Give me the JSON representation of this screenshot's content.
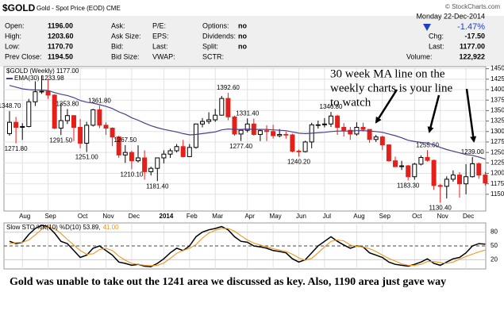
{
  "chart_data": {
    "type": "candlestick",
    "title": "$GOLD",
    "subtitle": "Gold - Spot Price (EOD) CME",
    "source": "© StockCharts.com",
    "quote": [
      [
        {
          "label": "Open:",
          "value": "1196.00"
        },
        {
          "label": "Ask:"
        },
        {
          "label": "P/E:"
        },
        {
          "label": "Options:",
          "value": "no"
        }
      ],
      [
        {
          "label": "High:",
          "value": "1203.60"
        },
        {
          "label": "Ask Size:"
        },
        {
          "label": "EPS:"
        },
        {
          "label": "Dividends:",
          "value": "no"
        }
      ],
      [
        {
          "label": "Low:",
          "value": "1170.70"
        },
        {
          "label": "Bid:"
        },
        {
          "label": "Last:"
        },
        {
          "label": "Split:",
          "value": "no"
        }
      ],
      [
        {
          "label": "Prev Close:",
          "value": "1194.50"
        },
        {
          "label": "Bid Size:"
        },
        {
          "label": "VWAP:"
        },
        {
          "label": "SCTR:"
        }
      ]
    ],
    "session": {
      "date": "Monday  22-Dec-2014",
      "change_pct": "-1.47%",
      "fields": [
        {
          "label": "Chg:",
          "value": "-17.50"
        },
        {
          "label": "Last:",
          "value": "1177.00"
        },
        {
          "label": "Volume:",
          "value": "122,922"
        }
      ]
    },
    "legend": "$GOLD (Weekly) 1177.00",
    "categories": [
      null,
      null,
      "Aug",
      null,
      null,
      null,
      "Sep",
      null,
      null,
      null,
      null,
      "Oct",
      null,
      null,
      null,
      "Nov",
      null,
      null,
      null,
      "Dec",
      null,
      null,
      null,
      null,
      "2014",
      null,
      null,
      null,
      "Feb",
      null,
      null,
      null,
      "Mar",
      null,
      null,
      null,
      null,
      "Apr",
      null,
      null,
      null,
      "May",
      null,
      null,
      null,
      "Jun",
      null,
      null,
      null,
      "Jul",
      null,
      null,
      null,
      null,
      "Aug",
      null,
      null,
      null,
      "Sep",
      null,
      null,
      null,
      null,
      "Oct",
      null,
      null,
      null,
      "Nov",
      null,
      null,
      null,
      "Dec",
      null,
      null,
      null
    ],
    "open": [
      1295,
      1322,
      1310,
      1312,
      1371,
      1395,
      1396,
      1387,
      1308,
      1326,
      1338,
      1310,
      1272,
      1315,
      1352,
      1315,
      1308,
      1287,
      1244,
      1250,
      1230,
      1237,
      1204,
      1212,
      1237,
      1246,
      1254,
      1264,
      1240,
      1262,
      1318,
      1324,
      1328,
      1339,
      1379,
      1335,
      1294,
      1303,
      1318,
      1293,
      1302,
      1300,
      1290,
      1293,
      1292,
      1253,
      1252,
      1275,
      1316,
      1316,
      1318,
      1337,
      1310,
      1303,
      1294,
      1310,
      1305,
      1281,
      1287,
      1268,
      1230,
      1216,
      1218,
      1192,
      1222,
      1238,
      1231,
      1171,
      1169,
      1186,
      1196,
      1175,
      1192,
      1223,
      1196
    ],
    "high": [
      1348.7,
      1335,
      1320,
      1378,
      1420,
      1434,
      1425,
      1389,
      1368,
      1353.8,
      1339,
      1330,
      1323,
      1354,
      1361.8,
      1322,
      1310,
      1290,
      1267.5,
      1254,
      1267,
      1255,
      1216,
      1238,
      1255,
      1259,
      1270,
      1280,
      1270,
      1319,
      1332,
      1346,
      1354,
      1385,
      1392.6,
      1338,
      1306,
      1331.4,
      1331,
      1305,
      1315,
      1316,
      1306,
      1300,
      1295,
      1257,
      1278,
      1321,
      1326,
      1332,
      1346.8,
      1340,
      1320,
      1311,
      1322,
      1321,
      1305,
      1292,
      1290,
      1269,
      1240,
      1230,
      1220,
      1225,
      1243,
      1255.6,
      1233,
      1175,
      1193,
      1207,
      1203,
      1222,
      1239,
      1226,
      1203.6
    ],
    "low": [
      1290,
      1271.8,
      1280,
      1310,
      1361,
      1390,
      1378,
      1306,
      1291.5,
      1318,
      1277,
      1260,
      1251,
      1312,
      1308,
      1292,
      1265,
      1237,
      1225,
      1210.1,
      1226,
      1185,
      1195,
      1181.4,
      1224,
      1237,
      1250,
      1238,
      1240,
      1259,
      1310,
      1318,
      1323,
      1338,
      1327,
      1290,
      1277.4,
      1298,
      1290,
      1277,
      1277,
      1283,
      1286,
      1283,
      1250,
      1240.2,
      1250,
      1260,
      1307,
      1310,
      1311,
      1292,
      1288,
      1280,
      1290,
      1300,
      1273,
      1275,
      1256,
      1228,
      1215,
      1208,
      1183.3,
      1185,
      1219,
      1228,
      1161,
      1130.4,
      1140,
      1180,
      1142,
      1150,
      1190,
      1187,
      1170.7
    ],
    "close": [
      1322,
      1310,
      1312,
      1371,
      1395,
      1396,
      1387,
      1308,
      1326,
      1338,
      1310,
      1272,
      1315,
      1352,
      1315,
      1308,
      1287,
      1244,
      1250,
      1230,
      1237,
      1204,
      1212,
      1237,
      1246,
      1254,
      1264,
      1240,
      1262,
      1318,
      1324,
      1328,
      1339,
      1379,
      1335,
      1294,
      1303,
      1318,
      1293,
      1302,
      1300,
      1290,
      1293,
      1292,
      1253,
      1252,
      1275,
      1316,
      1316,
      1318,
      1337,
      1310,
      1303,
      1294,
      1310,
      1305,
      1281,
      1287,
      1268,
      1230,
      1216,
      1218,
      1192,
      1222,
      1238,
      1231,
      1171,
      1169,
      1186,
      1196,
      1175,
      1192,
      1223,
      1196,
      1177
    ],
    "high_labels": [
      "1348.70",
      null,
      null,
      null,
      null,
      null,
      null,
      null,
      null,
      "1353.80",
      null,
      null,
      null,
      null,
      "1361.80",
      null,
      null,
      null,
      "1267.50",
      null,
      null,
      null,
      null,
      null,
      null,
      null,
      null,
      null,
      null,
      null,
      null,
      null,
      null,
      null,
      "1392.60",
      null,
      null,
      "1331.40",
      null,
      null,
      null,
      null,
      null,
      null,
      null,
      null,
      null,
      null,
      null,
      null,
      "1346.80",
      null,
      null,
      null,
      null,
      null,
      null,
      null,
      null,
      null,
      null,
      null,
      null,
      null,
      null,
      "1255.60",
      null,
      null,
      null,
      null,
      null,
      null,
      "1239.00",
      null,
      null
    ],
    "low_labels": [
      null,
      "1271.80",
      null,
      null,
      null,
      null,
      null,
      null,
      "1291.50",
      null,
      null,
      null,
      "1251.00",
      null,
      null,
      null,
      null,
      null,
      null,
      "1210.10",
      null,
      null,
      null,
      "1181.40",
      null,
      null,
      null,
      null,
      null,
      null,
      null,
      null,
      null,
      null,
      null,
      null,
      "1277.40",
      null,
      null,
      null,
      null,
      null,
      null,
      null,
      null,
      "1240.20",
      null,
      null,
      null,
      null,
      null,
      null,
      null,
      null,
      null,
      null,
      null,
      null,
      null,
      null,
      null,
      null,
      "1183.30",
      null,
      null,
      null,
      null,
      "1130.40",
      null,
      null,
      null,
      null,
      null,
      null,
      null
    ],
    "up_color": "#000000",
    "down_color": "#e3201b",
    "ylim": [
      1110,
      1455
    ],
    "yticks": [
      1150,
      1175,
      1200,
      1225,
      1250,
      1275,
      1300,
      1325,
      1350,
      1375,
      1400,
      1425,
      1450
    ],
    "grid": true,
    "ema": {
      "name": "EMA(30) 1233.98",
      "color": "#4a3f8c",
      "values": [
        1410,
        1406,
        1402,
        1400,
        1399,
        1399,
        1398,
        1393,
        1389,
        1386,
        1381,
        1374,
        1370,
        1368,
        1364,
        1360,
        1355,
        1347,
        1341,
        1333,
        1327,
        1320,
        1314,
        1309,
        1305,
        1302,
        1299,
        1295,
        1292,
        1293,
        1295,
        1297,
        1299,
        1304,
        1306,
        1305,
        1305,
        1306,
        1305,
        1305,
        1305,
        1304,
        1303,
        1302,
        1299,
        1296,
        1295,
        1296,
        1297,
        1298,
        1300,
        1301,
        1301,
        1301,
        1302,
        1302,
        1301,
        1300,
        1298,
        1294,
        1290,
        1285,
        1279,
        1276,
        1274,
        1272,
        1268,
        1262,
        1257,
        1253,
        1249,
        1245,
        1243,
        1239,
        1233.98
      ]
    },
    "annotation": [
      "30 week MA line on the",
      "weekly charts is your line",
      "to watch"
    ],
    "stochastic": {
      "type": "line",
      "label": "Slow STO %K(10) %D(10) 53.89,",
      "d_label": "41.00",
      "ylim": [
        0,
        100
      ],
      "yticks": [
        20,
        50,
        80
      ],
      "series": [
        {
          "color": "#000000",
          "values": [
            60,
            55,
            58,
            75,
            88,
            95,
            92,
            78,
            60,
            55,
            40,
            25,
            30,
            45,
            50,
            40,
            30,
            15,
            12,
            8,
            10,
            6,
            5,
            12,
            22,
            35,
            45,
            40,
            50,
            70,
            80,
            85,
            88,
            92,
            85,
            70,
            60,
            58,
            50,
            48,
            45,
            40,
            38,
            35,
            22,
            15,
            20,
            35,
            50,
            60,
            70,
            60,
            52,
            45,
            50,
            48,
            35,
            30,
            25,
            15,
            10,
            8,
            6,
            10,
            15,
            22,
            12,
            8,
            15,
            22,
            25,
            35,
            50,
            55,
            53.89
          ]
        },
        {
          "color": "#f0961e",
          "values": [
            55,
            57,
            58,
            63,
            74,
            86,
            92,
            88,
            77,
            64,
            52,
            40,
            32,
            33,
            42,
            45,
            40,
            28,
            19,
            12,
            10,
            8,
            7,
            8,
            13,
            23,
            34,
            40,
            45,
            53,
            67,
            78,
            84,
            88,
            88,
            82,
            72,
            63,
            56,
            52,
            48,
            44,
            41,
            38,
            32,
            24,
            19,
            23,
            35,
            48,
            60,
            63,
            61,
            52,
            49,
            48,
            44,
            38,
            30,
            23,
            17,
            11,
            8,
            8,
            10,
            16,
            16,
            14,
            12,
            15,
            21,
            27,
            32,
            37,
            41
          ]
        }
      ]
    },
    "caption": "Gold was unable to take out the 1241 area we discussed as key. Also, 1190 area just gave way"
  }
}
